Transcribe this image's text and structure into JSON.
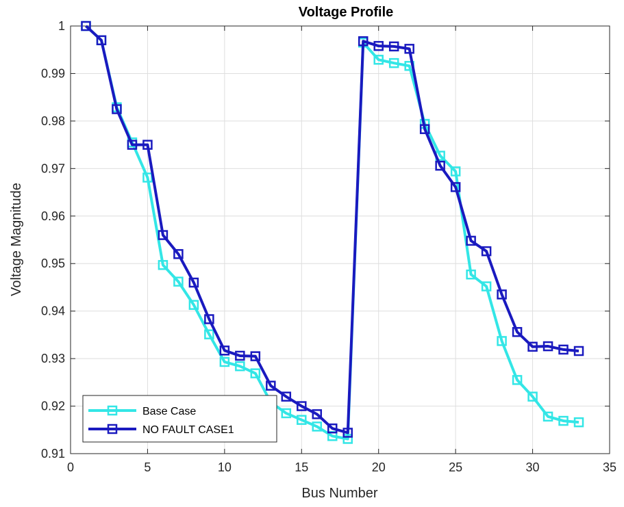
{
  "chart_data": {
    "type": "line",
    "title": "Voltage Profile",
    "xlabel": "Bus Number",
    "ylabel": "Voltage Magnitude",
    "xlim": [
      0,
      35
    ],
    "ylim": [
      0.91,
      1.0
    ],
    "xticks": [
      0,
      5,
      10,
      15,
      20,
      25,
      30,
      35
    ],
    "yticks": [
      0.91,
      0.92,
      0.93,
      0.94,
      0.95,
      0.96,
      0.97,
      0.98,
      0.99,
      1.0
    ],
    "xtick_labels": [
      "0",
      "5",
      "10",
      "15",
      "20",
      "25",
      "30",
      "35"
    ],
    "ytick_labels": [
      "0.91",
      "0.92",
      "0.93",
      "0.94",
      "0.95",
      "0.96",
      "0.97",
      "0.98",
      "0.99",
      "1"
    ],
    "grid": true,
    "legend_position": "bottom-left",
    "x": [
      1,
      2,
      3,
      4,
      5,
      6,
      7,
      8,
      9,
      10,
      11,
      12,
      13,
      14,
      15,
      16,
      17,
      18,
      19,
      20,
      21,
      22,
      23,
      24,
      25,
      26,
      27,
      28,
      29,
      30,
      31,
      32,
      33
    ],
    "series": [
      {
        "name": "Base Case",
        "color": "#33e6e6",
        "marker": "square",
        "values": [
          1.0,
          0.997,
          0.9829,
          0.9755,
          0.9681,
          0.9497,
          0.9462,
          0.9413,
          0.9351,
          0.9293,
          0.9284,
          0.9269,
          0.9208,
          0.9185,
          0.9171,
          0.9157,
          0.9137,
          0.9131,
          0.9965,
          0.9929,
          0.9922,
          0.9916,
          0.9794,
          0.9727,
          0.9694,
          0.9477,
          0.9452,
          0.9337,
          0.9255,
          0.922,
          0.9178,
          0.9169,
          0.9166
        ]
      },
      {
        "name": "NO FAULT CASE1",
        "color": "#1a1abf",
        "marker": "square",
        "values": [
          1.0,
          0.997,
          0.9825,
          0.975,
          0.975,
          0.956,
          0.952,
          0.946,
          0.9383,
          0.9317,
          0.9306,
          0.9305,
          0.9243,
          0.922,
          0.92,
          0.9183,
          0.9153,
          0.9144,
          0.9968,
          0.9958,
          0.9957,
          0.9952,
          0.9783,
          0.9706,
          0.9661,
          0.9548,
          0.9526,
          0.9435,
          0.9356,
          0.9325,
          0.9326,
          0.9319,
          0.9316
        ]
      }
    ]
  }
}
